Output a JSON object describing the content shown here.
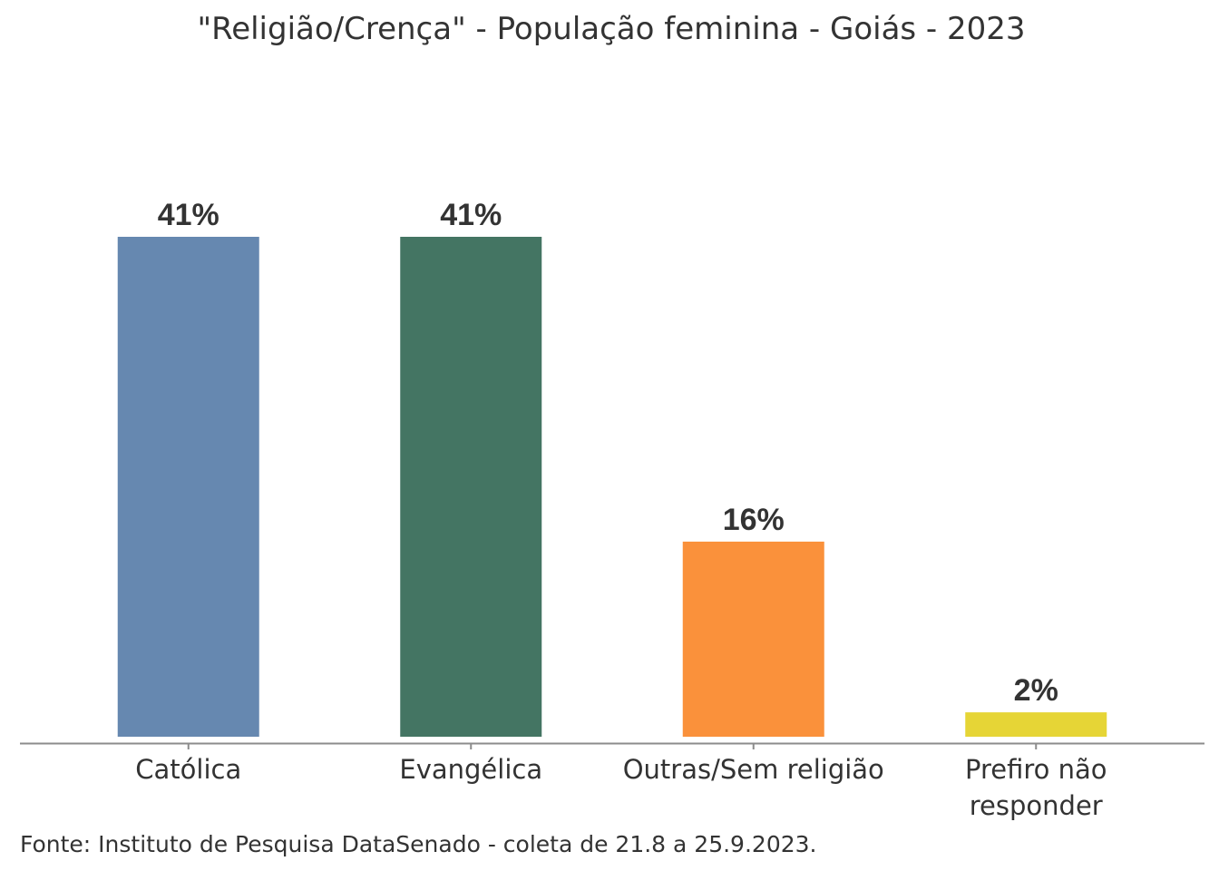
{
  "chart_data": {
    "type": "bar",
    "title": "\"Religião/Crença\" - População feminina - Goiás - 2023",
    "categories": [
      [
        "Católica"
      ],
      [
        "Evangélica"
      ],
      [
        "Outras/Sem religião"
      ],
      [
        "Prefiro não",
        "responder"
      ]
    ],
    "values": [
      41,
      41,
      16,
      2
    ],
    "data_labels": [
      "41%",
      "41%",
      "16%",
      "2%"
    ],
    "unit": "%",
    "colors": [
      "#6688b0",
      "#447563",
      "#fa913b",
      "#e6d536"
    ],
    "ylim": [
      0,
      41
    ],
    "grid": false,
    "y_axis_visible": false,
    "source": "Fonte: Instituto de Pesquisa DataSenado - coleta de 21.8 a 25.9.2023."
  }
}
